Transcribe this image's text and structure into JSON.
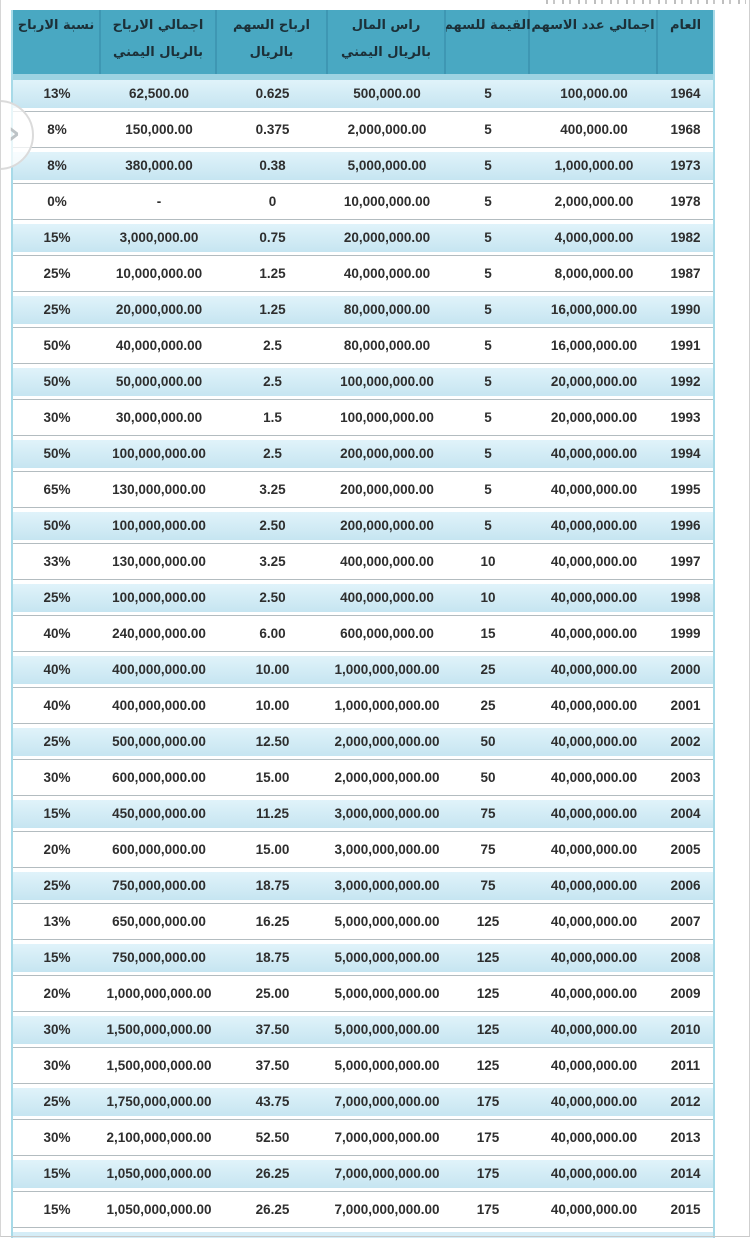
{
  "nav": {
    "next_icon": "›"
  },
  "colors": {
    "header_bg": "#49A8C2",
    "header_column_separator": "#3E97B3",
    "header_underline": "#9DD3E2",
    "stripe_blue": "#CDE9F4",
    "row_separator": "#B3BCC0",
    "table_side_border": "#A7DAE8",
    "header_text": "#1C3038",
    "cell_text": "#2E2E2E"
  },
  "chart_data": {
    "type": "table",
    "direction": "rtl",
    "columns": [
      {
        "key": "year",
        "label_lines": [
          "العام"
        ]
      },
      {
        "key": "total_shares",
        "label_lines": [
          "اجمالي عدد الاسهم"
        ]
      },
      {
        "key": "value_per_share",
        "label_lines": [
          "القيمة للسهم"
        ]
      },
      {
        "key": "capital",
        "label_lines": [
          "راس المال",
          "بالريال اليمني"
        ]
      },
      {
        "key": "dividend_per_share",
        "label_lines": [
          "ارباح السهم",
          "بالريال"
        ]
      },
      {
        "key": "total_dividends",
        "label_lines": [
          "اجمالي الارباح",
          "بالريال اليمني"
        ]
      },
      {
        "key": "dividend_ratio",
        "label_lines": [
          "نسبة الارباح"
        ]
      }
    ],
    "rows": [
      [
        "1964",
        "100,000.00",
        "5",
        "500,000.00",
        "0.625",
        "62,500.00",
        "13%"
      ],
      [
        "1968",
        "400,000.00",
        "5",
        "2,000,000.00",
        "0.375",
        "150,000.00",
        "8%"
      ],
      [
        "1973",
        "1,000,000.00",
        "5",
        "5,000,000.00",
        "0.38",
        "380,000.00",
        "8%"
      ],
      [
        "1978",
        "2,000,000.00",
        "5",
        "10,000,000.00",
        "0",
        "-",
        "0%"
      ],
      [
        "1982",
        "4,000,000.00",
        "5",
        "20,000,000.00",
        "0.75",
        "3,000,000.00",
        "15%"
      ],
      [
        "1987",
        "8,000,000.00",
        "5",
        "40,000,000.00",
        "1.25",
        "10,000,000.00",
        "25%"
      ],
      [
        "1990",
        "16,000,000.00",
        "5",
        "80,000,000.00",
        "1.25",
        "20,000,000.00",
        "25%"
      ],
      [
        "1991",
        "16,000,000.00",
        "5",
        "80,000,000.00",
        "2.5",
        "40,000,000.00",
        "50%"
      ],
      [
        "1992",
        "20,000,000.00",
        "5",
        "100,000,000.00",
        "2.5",
        "50,000,000.00",
        "50%"
      ],
      [
        "1993",
        "20,000,000.00",
        "5",
        "100,000,000.00",
        "1.5",
        "30,000,000.00",
        "30%"
      ],
      [
        "1994",
        "40,000,000.00",
        "5",
        "200,000,000.00",
        "2.5",
        "100,000,000.00",
        "50%"
      ],
      [
        "1995",
        "40,000,000.00",
        "5",
        "200,000,000.00",
        "3.25",
        "130,000,000.00",
        "65%"
      ],
      [
        "1996",
        "40,000,000.00",
        "5",
        "200,000,000.00",
        "2.50",
        "100,000,000.00",
        "50%"
      ],
      [
        "1997",
        "40,000,000.00",
        "10",
        "400,000,000.00",
        "3.25",
        "130,000,000.00",
        "33%"
      ],
      [
        "1998",
        "40,000,000.00",
        "10",
        "400,000,000.00",
        "2.50",
        "100,000,000.00",
        "25%"
      ],
      [
        "1999",
        "40,000,000.00",
        "15",
        "600,000,000.00",
        "6.00",
        "240,000,000.00",
        "40%"
      ],
      [
        "2000",
        "40,000,000.00",
        "25",
        "1,000,000,000.00",
        "10.00",
        "400,000,000.00",
        "40%"
      ],
      [
        "2001",
        "40,000,000.00",
        "25",
        "1,000,000,000.00",
        "10.00",
        "400,000,000.00",
        "40%"
      ],
      [
        "2002",
        "40,000,000.00",
        "50",
        "2,000,000,000.00",
        "12.50",
        "500,000,000.00",
        "25%"
      ],
      [
        "2003",
        "40,000,000.00",
        "50",
        "2,000,000,000.00",
        "15.00",
        "600,000,000.00",
        "30%"
      ],
      [
        "2004",
        "40,000,000.00",
        "75",
        "3,000,000,000.00",
        "11.25",
        "450,000,000.00",
        "15%"
      ],
      [
        "2005",
        "40,000,000.00",
        "75",
        "3,000,000,000.00",
        "15.00",
        "600,000,000.00",
        "20%"
      ],
      [
        "2006",
        "40,000,000.00",
        "75",
        "3,000,000,000.00",
        "18.75",
        "750,000,000.00",
        "25%"
      ],
      [
        "2007",
        "40,000,000.00",
        "125",
        "5,000,000,000.00",
        "16.25",
        "650,000,000.00",
        "13%"
      ],
      [
        "2008",
        "40,000,000.00",
        "125",
        "5,000,000,000.00",
        "18.75",
        "750,000,000.00",
        "15%"
      ],
      [
        "2009",
        "40,000,000.00",
        "125",
        "5,000,000,000.00",
        "25.00",
        "1,000,000,000.00",
        "20%"
      ],
      [
        "2010",
        "40,000,000.00",
        "125",
        "5,000,000,000.00",
        "37.50",
        "1,500,000,000.00",
        "30%"
      ],
      [
        "2011",
        "40,000,000.00",
        "125",
        "5,000,000,000.00",
        "37.50",
        "1,500,000,000.00",
        "30%"
      ],
      [
        "2012",
        "40,000,000.00",
        "175",
        "7,000,000,000.00",
        "43.75",
        "1,750,000,000.00",
        "25%"
      ],
      [
        "2013",
        "40,000,000.00",
        "175",
        "7,000,000,000.00",
        "52.50",
        "2,100,000,000.00",
        "30%"
      ],
      [
        "2014",
        "40,000,000.00",
        "175",
        "7,000,000,000.00",
        "26.25",
        "1,050,000,000.00",
        "15%"
      ],
      [
        "2015",
        "40,000,000.00",
        "175",
        "7,000,000,000.00",
        "26.25",
        "1,050,000,000.00",
        "15%"
      ]
    ]
  }
}
